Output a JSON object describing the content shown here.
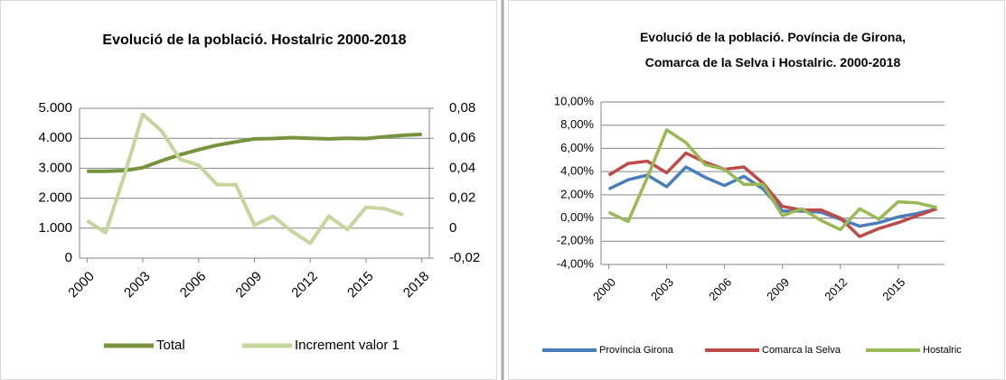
{
  "chart_data": [
    {
      "type": "line",
      "title": "Evolució de la població. Hostalric 2000-2018",
      "x": [
        2000,
        2001,
        2002,
        2003,
        2004,
        2005,
        2006,
        2007,
        2008,
        2009,
        2010,
        2011,
        2012,
        2013,
        2014,
        2015,
        2016,
        2017,
        2018
      ],
      "xlim": [
        1999.6,
        2018.4
      ],
      "xticks": [
        2000,
        2003,
        2006,
        2009,
        2012,
        2015,
        2018
      ],
      "ylim": [
        0,
        5000
      ],
      "yticks": [
        0,
        {
          "value": 1000,
          "label": "1.000"
        },
        {
          "value": 2000,
          "label": "2.000"
        },
        {
          "value": 3000,
          "label": "3.000"
        },
        {
          "value": 4000,
          "label": "4.000"
        },
        {
          "value": 5000,
          "label": "5.000"
        }
      ],
      "y2lim": [
        -0.02,
        0.08
      ],
      "y2ticks": [
        {
          "value": -0.02,
          "label": "-0,02"
        },
        0,
        {
          "value": 0.02,
          "label": "0,02"
        },
        {
          "value": 0.04,
          "label": "0,04"
        },
        {
          "value": 0.06,
          "label": "0,06"
        },
        {
          "value": 0.08,
          "label": "0,08"
        }
      ],
      "grid": true,
      "series": [
        {
          "name": "Total",
          "color": "#77933c",
          "values": [
            2900,
            2900,
            2920,
            3020,
            3250,
            3450,
            3620,
            3770,
            3880,
            3980,
            3990,
            4020,
            4000,
            3980,
            4000,
            3990,
            4050,
            4100,
            4130
          ]
        },
        {
          "name": "Increment valor 1",
          "color": "#c3d69b",
          "axis": "y2",
          "values": [
            0.005,
            -0.003,
            0.035,
            0.076,
            0.065,
            0.046,
            0.042,
            0.029,
            0.029,
            0.002,
            0.008,
            -0.002,
            -0.01,
            0.008,
            -0.001,
            0.014,
            0.013,
            0.009,
            null
          ]
        }
      ]
    },
    {
      "type": "line",
      "title": "Evolució de la població. Povíncia de Girona, Comarca de la Selva i Hostalric. 2000-2018",
      "x": [
        2000,
        2001,
        2002,
        2003,
        2004,
        2005,
        2006,
        2007,
        2008,
        2009,
        2010,
        2011,
        2012,
        2013,
        2014,
        2015,
        2016,
        2017
      ],
      "xlim": [
        1999.6,
        2017.4
      ],
      "xticks": [
        2000,
        2003,
        2006,
        2009,
        2012,
        2015
      ],
      "ylim": [
        -4,
        10
      ],
      "yticks": [
        {
          "value": -4,
          "label": "-4,00%"
        },
        {
          "value": -2,
          "label": "-2,00%"
        },
        {
          "value": 0,
          "label": "0,00%"
        },
        {
          "value": 2,
          "label": "2,00%"
        },
        {
          "value": 4,
          "label": "4,00%"
        },
        {
          "value": 6,
          "label": "6,00%"
        },
        {
          "value": 8,
          "label": "8,00%"
        },
        {
          "value": 10,
          "label": "10,00%"
        }
      ],
      "grid": true,
      "series": [
        {
          "name": "Província Girona",
          "color": "#4a7ebb",
          "values": [
            2.5,
            3.3,
            3.7,
            2.7,
            4.4,
            3.5,
            2.8,
            3.6,
            2.5,
            0.6,
            0.6,
            0.5,
            -0.1,
            -0.7,
            -0.4,
            0.1,
            0.4,
            0.8
          ]
        },
        {
          "name": "Comarca la Selva",
          "color": "#be4b48",
          "values": [
            3.7,
            4.7,
            4.9,
            3.9,
            5.6,
            4.8,
            4.2,
            4.4,
            3.0,
            1.0,
            0.7,
            0.7,
            0.0,
            -1.6,
            -0.9,
            -0.4,
            0.2,
            0.8
          ]
        },
        {
          "name": "Hostalric",
          "color": "#98b954",
          "values": [
            0.5,
            -0.3,
            3.5,
            7.6,
            6.5,
            4.6,
            4.2,
            2.9,
            2.9,
            0.2,
            0.8,
            -0.2,
            -1.0,
            0.8,
            -0.1,
            1.4,
            1.3,
            0.9
          ]
        }
      ]
    }
  ]
}
